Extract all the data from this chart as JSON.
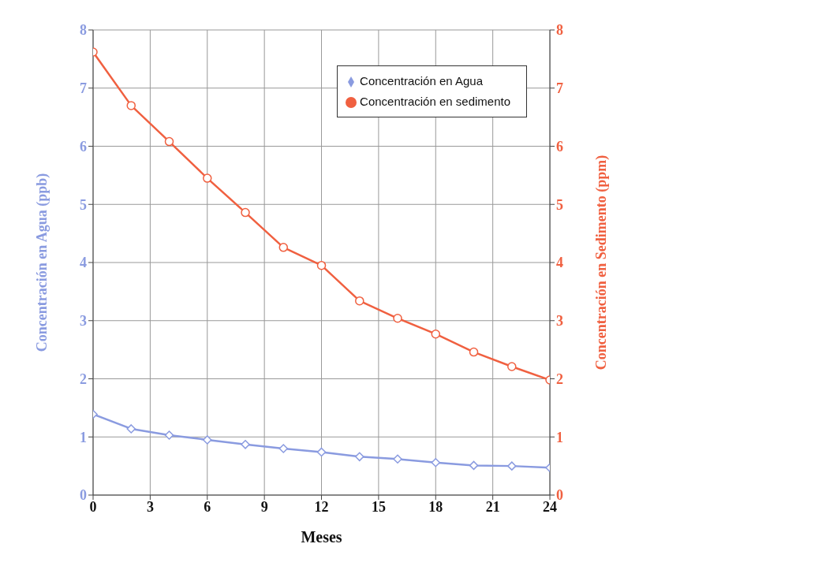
{
  "chart_data": {
    "type": "line",
    "xlabel": "Meses",
    "ylabel": "Concentración en Agua (ppb)",
    "y2label": "Concentración en Sedimento (ppm)",
    "x": [
      0,
      2,
      4,
      6,
      8,
      10,
      12,
      14,
      16,
      18,
      20,
      22,
      24
    ],
    "series": [
      {
        "name": "Concentración en Agua",
        "color": "#8a9be0",
        "marker": "diamond",
        "values": [
          1.39,
          1.14,
          1.03,
          0.95,
          0.87,
          0.8,
          0.74,
          0.66,
          0.62,
          0.56,
          0.51,
          0.5,
          0.47
        ]
      },
      {
        "name": "Concentración en sedimento",
        "color": "#f06040",
        "marker": "circle",
        "axis": "y2",
        "values": [
          7.62,
          6.7,
          6.08,
          5.45,
          4.86,
          4.26,
          3.95,
          3.34,
          3.04,
          2.77,
          2.46,
          2.21,
          1.98
        ]
      }
    ],
    "xlim": [
      0,
      24
    ],
    "xticks": [
      0,
      3,
      6,
      9,
      12,
      15,
      18,
      21,
      24
    ],
    "ylim": [
      0,
      8
    ],
    "yticks": [
      0,
      1,
      2,
      3,
      4,
      5,
      6,
      7,
      8
    ],
    "y2lim": [
      0,
      8
    ],
    "y2ticks": [
      0,
      1,
      2,
      3,
      4,
      5,
      6,
      7,
      8
    ],
    "grid": true,
    "legend": "top right",
    "line_style": "solid"
  }
}
